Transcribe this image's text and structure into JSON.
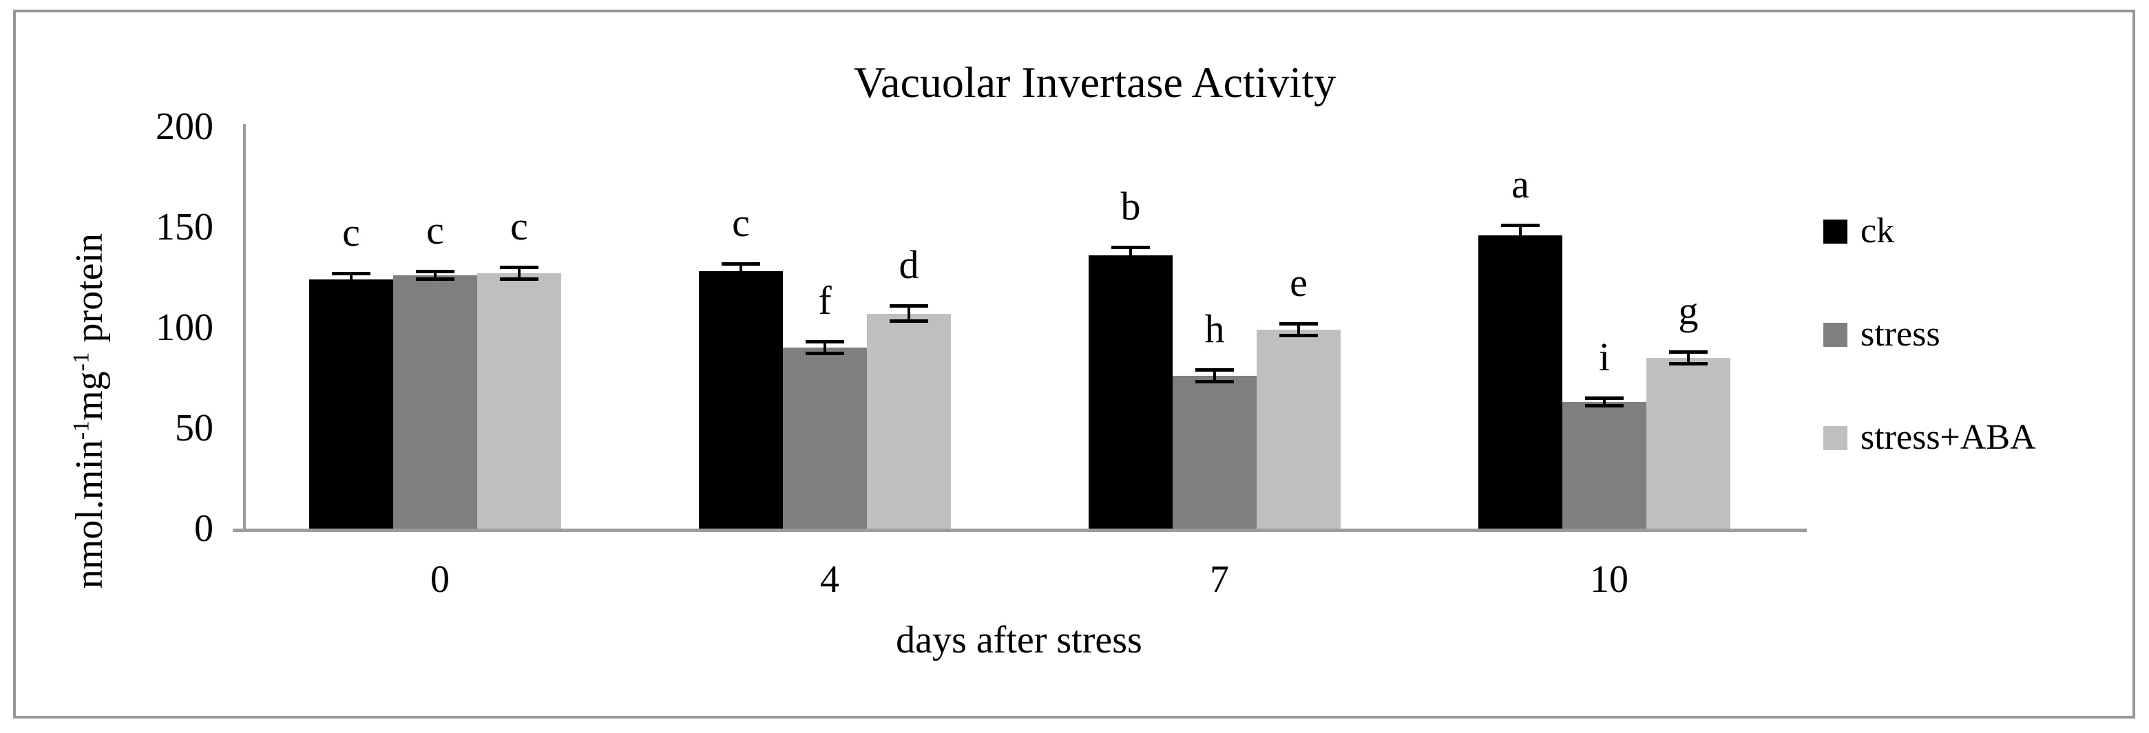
{
  "figure": {
    "title": "Vacuolar Invertase Activity",
    "border_color": "#979797",
    "background": "#ffffff"
  },
  "chart_data": {
    "type": "bar",
    "title": "Vacuolar Invertase Activity",
    "xlabel": "days after stress",
    "ylabel": "nmol.min⁻¹mg⁻¹ protein",
    "ylabel_segments": [
      {
        "text": "nmol.min",
        "sup": false
      },
      {
        "text": "-1",
        "sup": true
      },
      {
        "text": "mg",
        "sup": false
      },
      {
        "text": "-1",
        "sup": true
      },
      {
        "text": " protein",
        "sup": false
      }
    ],
    "ylim": [
      0,
      200
    ],
    "yticks": [
      0,
      50,
      100,
      150,
      200
    ],
    "categories": [
      "0",
      "4",
      "7",
      "10"
    ],
    "series": [
      {
        "name": "ck",
        "color": "#000000",
        "values": [
          124,
          128,
          136,
          146
        ],
        "errors": [
          3,
          4,
          4,
          5
        ],
        "letters": [
          "c",
          "c",
          "b",
          "a"
        ]
      },
      {
        "name": "stress",
        "color": "#7f7f7f",
        "values": [
          126,
          90,
          76,
          63
        ],
        "errors": [
          2,
          3,
          3,
          2
        ],
        "letters": [
          "c",
          "f",
          "h",
          "i"
        ]
      },
      {
        "name": "stress+ABA",
        "color": "#bfbfbf",
        "values": [
          127,
          107,
          99,
          85
        ],
        "errors": [
          3,
          4,
          3,
          3
        ],
        "letters": [
          "c",
          "d",
          "e",
          "g"
        ]
      }
    ],
    "legend": {
      "position": "right"
    },
    "grid": false,
    "axis_color": "#9d9d9d",
    "error_bar_color": "#000000"
  }
}
